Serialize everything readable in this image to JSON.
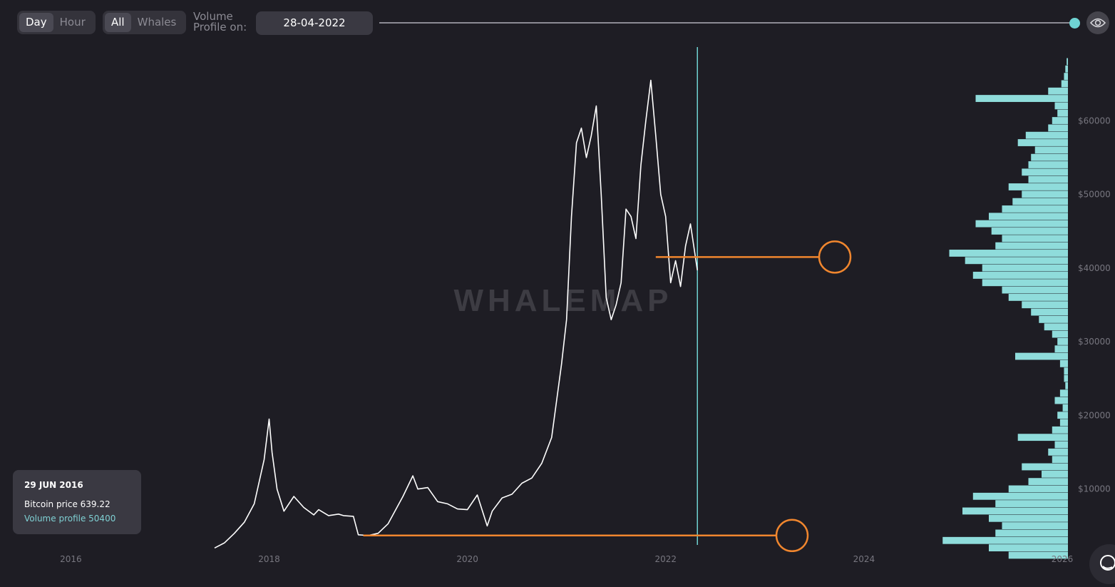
{
  "toolbar": {
    "timeframe": [
      {
        "label": "Day",
        "active": true
      },
      {
        "label": "Hour",
        "active": false
      }
    ],
    "filter": [
      {
        "label": "All",
        "active": true
      },
      {
        "label": "Whales",
        "active": false
      }
    ],
    "volume_profile_label": "Volume Profile on:",
    "date_value": "28-04-2022",
    "icons": {
      "slider_knob": "slider-knob-icon",
      "visibility": "eye-icon",
      "chat": "chat-bubble-icon"
    }
  },
  "watermark": "WHALEMAP",
  "info_card": {
    "date": "29 JUN 2016",
    "price_text": "Bitcoin price 639.22",
    "volume_text": "Volume profile 50400"
  },
  "colors": {
    "background": "#1e1d24",
    "price_line": "#ffffff",
    "volume_bars": "#8fdcdb",
    "marker_line": "#6fd3d3",
    "annotation": "#f0862e",
    "axis_text": "#77767f"
  },
  "chart_data": {
    "type": "line",
    "title": "",
    "xlabel": "",
    "ylabel": "",
    "xlim": [
      2015.3,
      2026.0
    ],
    "ylim": [
      0,
      70000
    ],
    "x_ticks": [
      2016,
      2018,
      2020,
      2022,
      2024,
      2026
    ],
    "x_tick_labels": [
      "2016",
      "2018",
      "2020",
      "2022",
      "2024",
      "2026"
    ],
    "y_ticks": [
      10000,
      20000,
      30000,
      40000,
      50000,
      60000
    ],
    "y_tick_labels": [
      "$10000",
      "$20000",
      "$30000",
      "$40000",
      "$50000",
      "$60000"
    ],
    "grid": false,
    "series": [
      {
        "x": [
          2017.45,
          2017.55,
          2017.65,
          2017.75,
          2017.85,
          2017.95,
          2018.0,
          2018.03,
          2018.08,
          2018.15,
          2018.25,
          2018.35,
          2018.45,
          2018.5,
          2018.6,
          2018.7,
          2018.75,
          2018.85,
          2018.9,
          2019.0,
          2019.1,
          2019.2,
          2019.35,
          2019.45,
          2019.5,
          2019.6,
          2019.7,
          2019.8,
          2019.9,
          2020.0,
          2020.1,
          2020.2,
          2020.25,
          2020.35,
          2020.45,
          2020.55,
          2020.65,
          2020.75,
          2020.85,
          2020.95,
          2021.0,
          2021.05,
          2021.1,
          2021.15,
          2021.2,
          2021.25,
          2021.3,
          2021.35,
          2021.4,
          2021.45,
          2021.5,
          2021.55,
          2021.6,
          2021.65,
          2021.7,
          2021.75,
          2021.8,
          2021.85,
          2021.9,
          2021.95,
          2022.0,
          2022.05,
          2022.1,
          2022.15,
          2022.2,
          2022.25,
          2022.32
        ],
        "y": [
          2000,
          2700,
          4000,
          5500,
          8000,
          14000,
          19500,
          15000,
          10000,
          7000,
          9000,
          7500,
          6500,
          7200,
          6400,
          6600,
          6400,
          6300,
          3800,
          3700,
          4000,
          5300,
          9000,
          11800,
          10000,
          10200,
          8300,
          8000,
          7300,
          7200,
          9200,
          5000,
          7000,
          8800,
          9300,
          10800,
          11500,
          13500,
          17000,
          27000,
          33000,
          47000,
          57000,
          59000,
          55000,
          58000,
          62000,
          50000,
          36000,
          33000,
          35000,
          38000,
          48000,
          47000,
          44000,
          54000,
          60000,
          65500,
          58000,
          50000,
          47000,
          38000,
          41000,
          37500,
          43000,
          46000,
          39700
        ]
      }
    ],
    "volume_profile": {
      "price_bins": [
        1000,
        2000,
        3000,
        4000,
        5000,
        6000,
        7000,
        8000,
        9000,
        10000,
        11000,
        12000,
        13000,
        14000,
        15000,
        16000,
        17000,
        18000,
        19000,
        20000,
        21000,
        22000,
        23000,
        24000,
        25000,
        26000,
        27000,
        28000,
        29000,
        30000,
        31000,
        32000,
        33000,
        34000,
        35000,
        36000,
        37000,
        38000,
        39000,
        40000,
        41000,
        42000,
        43000,
        44000,
        45000,
        46000,
        47000,
        48000,
        49000,
        50000,
        51000,
        52000,
        53000,
        54000,
        55000,
        56000,
        57000,
        58000,
        59000,
        60000,
        61000,
        62000,
        63000,
        64000,
        65000,
        66000,
        67000,
        68000
      ],
      "volumes": [
        0.45,
        0.6,
        0.95,
        0.55,
        0.5,
        0.6,
        0.8,
        0.55,
        0.72,
        0.45,
        0.3,
        0.2,
        0.35,
        0.12,
        0.15,
        0.1,
        0.38,
        0.12,
        0.06,
        0.08,
        0.04,
        0.1,
        0.06,
        0.02,
        0.03,
        0.03,
        0.06,
        0.4,
        0.1,
        0.08,
        0.12,
        0.18,
        0.22,
        0.28,
        0.35,
        0.45,
        0.5,
        0.65,
        0.72,
        0.65,
        0.78,
        0.9,
        0.55,
        0.5,
        0.58,
        0.7,
        0.6,
        0.5,
        0.42,
        0.35,
        0.45,
        0.3,
        0.35,
        0.3,
        0.28,
        0.25,
        0.38,
        0.32,
        0.15,
        0.12,
        0.08,
        0.1,
        0.7,
        0.15,
        0.05,
        0.03,
        0.02,
        0.01
      ]
    },
    "current_marker": {
      "x": 2022.32
    },
    "annotations": [
      {
        "type": "support-line",
        "price": 41500,
        "x_start": 2021.9
      },
      {
        "type": "support-line",
        "price": 3700,
        "x_start": 2018.95
      }
    ]
  }
}
